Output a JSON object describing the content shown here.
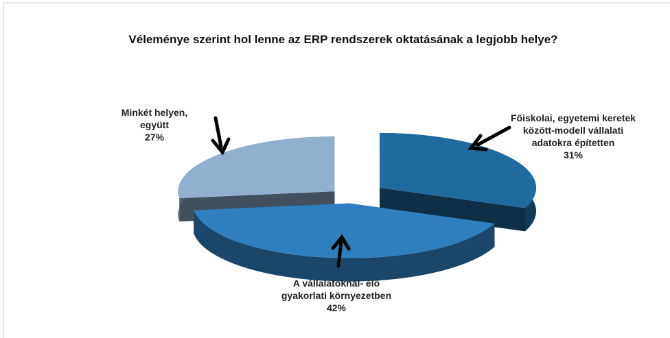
{
  "chart_data": {
    "type": "pie",
    "title": "Véleménye szerint hol lenne az ERP rendszerek oktatásának a legjobb helye?",
    "categories": [
      "Főiskolai, egyetemi keretek között-modell vállalati adatokra építetten",
      "A vállalatoknál- élő gyakorlati környezetben",
      "Minkét helyen, együtt"
    ],
    "values": [
      31,
      42,
      27
    ],
    "value_labels": [
      "31%",
      "42%",
      "27%"
    ],
    "colors": [
      "#1f6a9e",
      "#2f7fbf",
      "#93afcf"
    ]
  }
}
